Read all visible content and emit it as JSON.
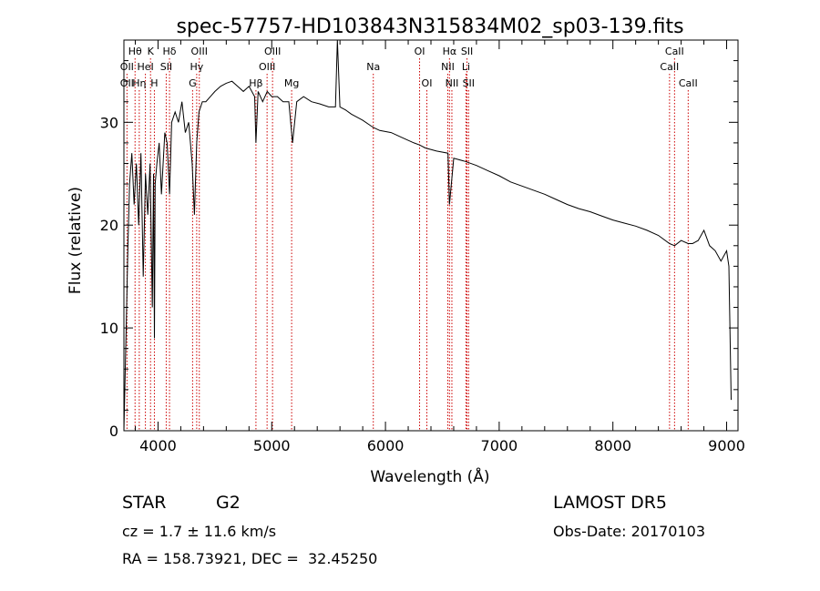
{
  "chart_data": {
    "type": "line",
    "title": "spec-57757-HD103843N315834M02_sp03-139.fits",
    "xlabel": "Wavelength (Å)",
    "ylabel": "Flux (relative)",
    "xlim": [
      3700,
      9100
    ],
    "ylim": [
      0,
      38
    ],
    "xticks": [
      4000,
      5000,
      6000,
      7000,
      8000,
      9000
    ],
    "xtick_labels": [
      "4000",
      "5000",
      "6000",
      "7000",
      "8000",
      "9000"
    ],
    "yticks": [
      0,
      10,
      20,
      30
    ],
    "ytick_labels": [
      "0",
      "10",
      "20",
      "30"
    ],
    "grid": false,
    "series": [
      {
        "x": [
          3700,
          3720,
          3735,
          3750,
          3770,
          3790,
          3810,
          3830,
          3850,
          3870,
          3890,
          3910,
          3930,
          3950,
          3960,
          3968,
          3975,
          3990,
          4010,
          4030,
          4060,
          4080,
          4101,
          4120,
          4150,
          4180,
          4210,
          4240,
          4270,
          4300,
          4320,
          4340,
          4360,
          4390,
          4420,
          4460,
          4500,
          4550,
          4600,
          4650,
          4700,
          4750,
          4800,
          4850,
          4861,
          4880,
          4920,
          4960,
          5000,
          5050,
          5100,
          5150,
          5183,
          5220,
          5280,
          5350,
          5420,
          5500,
          5560,
          5577,
          5600,
          5650,
          5700,
          5800,
          5893,
          5950,
          6050,
          6150,
          6250,
          6300,
          6350,
          6450,
          6550,
          6563,
          6600,
          6700,
          6800,
          6900,
          7000,
          7100,
          7200,
          7300,
          7400,
          7500,
          7600,
          7700,
          7800,
          7900,
          8000,
          8100,
          8200,
          8300,
          8400,
          8498,
          8542,
          8600,
          8662,
          8700,
          8750,
          8800,
          8850,
          8900,
          8950,
          9000,
          9020,
          9040
        ],
        "y": [
          0,
          10,
          18,
          24,
          27,
          22,
          26,
          20,
          27,
          15,
          25,
          21,
          26,
          12,
          25,
          9,
          24,
          26,
          28,
          23,
          29,
          28,
          23,
          30,
          31,
          30,
          32,
          29,
          30,
          26,
          21,
          28,
          31,
          32,
          32,
          32.5,
          33,
          33.5,
          33.8,
          34,
          33.5,
          33,
          33.5,
          32.5,
          28,
          33,
          32,
          33,
          32.5,
          32.5,
          32,
          32,
          28,
          32,
          32.5,
          32,
          31.8,
          31.5,
          31.5,
          38,
          31.5,
          31.2,
          30.8,
          30.2,
          29.5,
          29.2,
          29,
          28.5,
          28,
          27.8,
          27.5,
          27.2,
          27,
          22,
          26.5,
          26.2,
          25.8,
          25.3,
          24.8,
          24.2,
          23.8,
          23.4,
          23,
          22.5,
          22,
          21.6,
          21.3,
          20.9,
          20.5,
          20.2,
          19.9,
          19.5,
          19,
          18.2,
          18,
          18.5,
          18.2,
          18.2,
          18.5,
          19.5,
          18,
          17.5,
          16.5,
          17.5,
          16,
          3
        ]
      }
    ],
    "annotations": [
      {
        "label": "Hθ",
        "row": 1,
        "wavelength": 3798
      },
      {
        "label": "OII",
        "row": 2,
        "wavelength": 3727
      },
      {
        "label": "OII",
        "row": 3,
        "wavelength": 3727
      },
      {
        "label": "Hη",
        "row": 3,
        "wavelength": 3835
      },
      {
        "label": "HeI",
        "row": 2,
        "wavelength": 3889
      },
      {
        "label": "K",
        "row": 1,
        "wavelength": 3934
      },
      {
        "label": "H",
        "row": 3,
        "wavelength": 3968
      },
      {
        "label": "Hδ",
        "row": 1,
        "wavelength": 4101
      },
      {
        "label": "SII",
        "row": 2,
        "wavelength": 4072
      },
      {
        "label": "OIII",
        "row": 1,
        "wavelength": 4363
      },
      {
        "label": "Hγ",
        "row": 2,
        "wavelength": 4340
      },
      {
        "label": "G",
        "row": 3,
        "wavelength": 4304
      },
      {
        "label": "Hβ",
        "row": 3,
        "wavelength": 4861
      },
      {
        "label": "OIII",
        "row": 1,
        "wavelength": 5007
      },
      {
        "label": "OIII",
        "row": 2,
        "wavelength": 4959
      },
      {
        "label": "Mg",
        "row": 3,
        "wavelength": 5175
      },
      {
        "label": "Na",
        "row": 2,
        "wavelength": 5893
      },
      {
        "label": "OI",
        "row": 1,
        "wavelength": 6300
      },
      {
        "label": "OI",
        "row": 3,
        "wavelength": 6364
      },
      {
        "label": "Hα",
        "row": 1,
        "wavelength": 6563
      },
      {
        "label": "NII",
        "row": 2,
        "wavelength": 6548
      },
      {
        "label": "NII",
        "row": 3,
        "wavelength": 6584
      },
      {
        "label": "SII",
        "row": 1,
        "wavelength": 6717
      },
      {
        "label": "Li",
        "row": 2,
        "wavelength": 6708
      },
      {
        "label": "SII",
        "row": 3,
        "wavelength": 6731
      },
      {
        "label": "CaII",
        "row": 1,
        "wavelength": 8542
      },
      {
        "label": "CaII",
        "row": 2,
        "wavelength": 8498
      },
      {
        "label": "CaII",
        "row": 3,
        "wavelength": 8662
      }
    ],
    "line_marker_color": "#cc0000",
    "line_color": "#000000"
  },
  "footer": {
    "class_label": "STAR",
    "subclass": "G2",
    "survey": "LAMOST DR5",
    "redshift": "cz = 1.7 ± 11.6 km/s",
    "obs_date": "Obs-Date: 20170103",
    "coords": "RA = 158.73921, DEC =  32.45250"
  }
}
